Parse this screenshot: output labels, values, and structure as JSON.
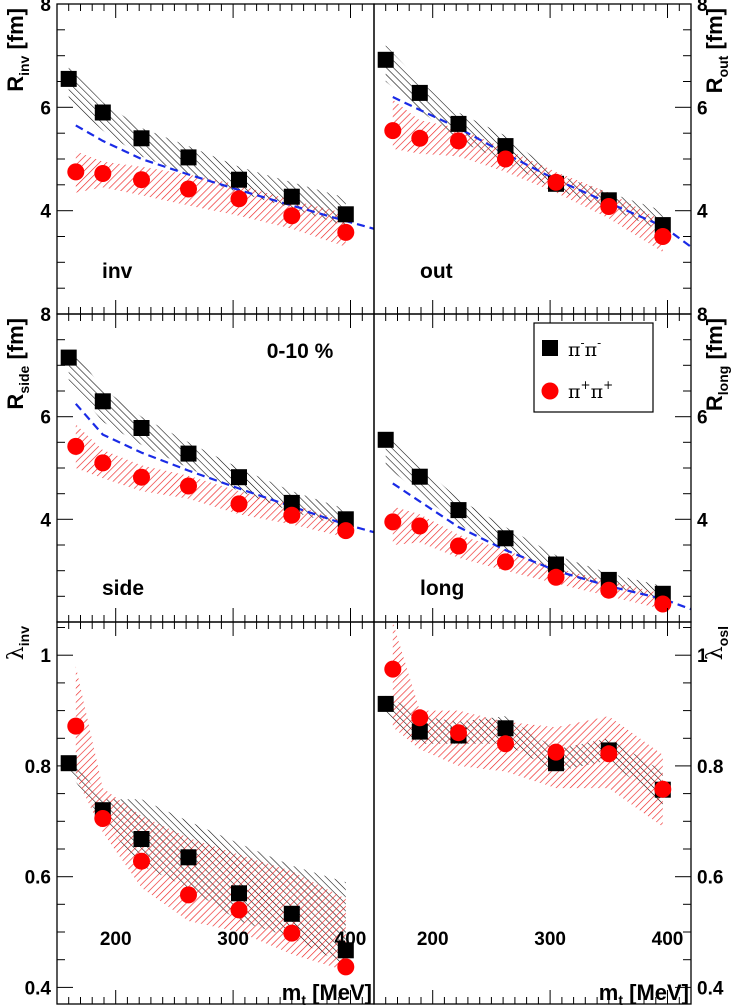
{
  "chart_data": {
    "type": "scatter",
    "centrality": "0-10 %",
    "x_axis": {
      "label": "m",
      "label_sub": "t",
      "label_unit": " [MeV]",
      "range": [
        150,
        420
      ],
      "ticks": [
        200,
        300,
        400
      ],
      "tick_labels": [
        "200",
        "300",
        "400"
      ]
    },
    "legend": {
      "position": "top-right of long panel",
      "entries": [
        {
          "series": "pim",
          "label": "π",
          "sup1": "-",
          "mid": "π",
          "sup2": "-"
        },
        {
          "series": "pip",
          "label": "π",
          "sup1": "+",
          "mid": "π",
          "sup2": "+"
        }
      ]
    },
    "colors": {
      "pim": "#000000",
      "pip": "#ff0000",
      "pip_fill": "#ee2222",
      "model": "#1a2be6"
    },
    "panels": [
      {
        "id": "inv",
        "label": "inv",
        "ylabel": "R",
        "ysub": "inv",
        "yunit": " [fm]",
        "ylabel_side": "left",
        "ylim": [
          2.0,
          8.0
        ],
        "yticks": [
          4,
          6,
          8
        ],
        "ytick_labels": [
          "4",
          "6",
          "8"
        ],
        "ytick_side": "left",
        "series": [
          {
            "name": "π-π-",
            "key": "pim",
            "marker": "square",
            "x": [
              160,
              189,
              222,
              262,
              305,
              350,
              396
            ],
            "y": [
              6.55,
              5.9,
              5.4,
              5.03,
              4.6,
              4.27,
              3.93
            ],
            "band_low": [
              6.15,
              5.55,
              5.05,
              4.7,
              4.35,
              4.05,
              3.7
            ],
            "band_high": [
              6.8,
              6.1,
              5.6,
              5.25,
              4.85,
              4.55,
              4.25
            ]
          },
          {
            "name": "π+π+",
            "key": "pip",
            "marker": "circle",
            "x": [
              166,
              189,
              222,
              262,
              305,
              350,
              396
            ],
            "y": [
              4.75,
              4.72,
              4.6,
              4.42,
              4.23,
              3.9,
              3.58
            ],
            "band_low": [
              4.35,
              4.45,
              4.3,
              4.1,
              3.9,
              3.65,
              3.3
            ],
            "band_high": [
              5.15,
              4.95,
              4.85,
              4.7,
              4.5,
              4.2,
              3.95
            ]
          }
        ],
        "model": {
          "x": [
            166,
            189,
            222,
            262,
            305,
            350,
            396,
            420
          ],
          "y": [
            5.65,
            5.35,
            5.0,
            4.7,
            4.4,
            4.1,
            3.8,
            3.65
          ]
        }
      },
      {
        "id": "out",
        "label": "out",
        "ylabel": "R",
        "ysub": "out",
        "yunit": " [fm]",
        "ylabel_side": "right",
        "ylim": [
          2.0,
          8.0
        ],
        "yticks": [
          4,
          6,
          8
        ],
        "ytick_labels": [
          "4",
          "6",
          "8"
        ],
        "ytick_side": "right",
        "series": [
          {
            "name": "π-π-",
            "key": "pim",
            "marker": "square",
            "x": [
              160,
              189,
              222,
              262,
              305,
              350,
              396
            ],
            "y": [
              6.92,
              6.28,
              5.68,
              5.25,
              4.52,
              4.2,
              3.72
            ],
            "band_low": [
              6.5,
              5.95,
              5.35,
              4.95,
              4.4,
              4.05,
              3.6
            ],
            "band_high": [
              7.2,
              6.5,
              5.9,
              5.45,
              4.7,
              4.35,
              4.0
            ]
          },
          {
            "name": "π+π+",
            "key": "pip",
            "marker": "circle",
            "x": [
              166,
              189,
              222,
              262,
              305,
              350,
              396
            ],
            "y": [
              5.55,
              5.4,
              5.35,
              5.0,
              4.55,
              4.08,
              3.5
            ],
            "band_low": [
              5.2,
              5.1,
              5.05,
              4.75,
              4.35,
              3.85,
              3.2
            ],
            "band_high": [
              6.15,
              5.75,
              5.6,
              5.2,
              4.75,
              4.35,
              3.8
            ]
          }
        ],
        "model": {
          "x": [
            166,
            189,
            222,
            262,
            305,
            350,
            396,
            420
          ],
          "y": [
            6.2,
            5.95,
            5.6,
            5.1,
            4.6,
            4.15,
            3.7,
            3.3
          ]
        }
      },
      {
        "id": "side",
        "label": "side",
        "ylabel": "R",
        "ysub": "side",
        "yunit": " [fm]",
        "ylabel_side": "left",
        "ylim": [
          2.0,
          8.0
        ],
        "yticks": [
          4,
          6,
          8
        ],
        "ytick_labels": [
          "4",
          "6",
          "8"
        ],
        "ytick_side": "left",
        "series": [
          {
            "name": "π-π-",
            "key": "pim",
            "marker": "square",
            "x": [
              160,
              189,
              222,
              262,
              305,
              350,
              396
            ],
            "y": [
              7.15,
              6.3,
              5.78,
              5.28,
              4.82,
              4.32,
              4.0
            ],
            "band_low": [
              6.7,
              5.9,
              5.45,
              5.0,
              4.55,
              4.15,
              3.85
            ],
            "band_high": [
              7.4,
              6.55,
              6.0,
              5.5,
              5.0,
              4.55,
              4.2
            ]
          },
          {
            "name": "π+π+",
            "key": "pip",
            "marker": "circle",
            "x": [
              166,
              189,
              222,
              262,
              305,
              350,
              396
            ],
            "y": [
              5.42,
              5.1,
              4.82,
              4.65,
              4.3,
              4.08,
              3.78
            ],
            "band_low": [
              5.0,
              4.8,
              4.55,
              4.4,
              4.1,
              3.9,
              3.65
            ],
            "band_high": [
              5.85,
              5.35,
              5.05,
              4.85,
              4.55,
              4.3,
              3.95
            ]
          }
        ],
        "model": {
          "x": [
            166,
            189,
            222,
            262,
            305,
            350,
            396,
            420
          ],
          "y": [
            6.25,
            5.65,
            5.3,
            4.95,
            4.6,
            4.25,
            3.9,
            3.75
          ]
        }
      },
      {
        "id": "long",
        "label": "long",
        "ylabel": "R",
        "ysub": "long",
        "yunit": " [fm]",
        "ylabel_side": "right",
        "ylim": [
          2.0,
          8.0
        ],
        "yticks": [
          4,
          6,
          8
        ],
        "ytick_labels": [
          "4",
          "6",
          "8"
        ],
        "ytick_side": "right",
        "series": [
          {
            "name": "π-π-",
            "key": "pim",
            "marker": "square",
            "x": [
              160,
              189,
              222,
              262,
              305,
              350,
              396
            ],
            "y": [
              5.55,
              4.83,
              4.18,
              3.63,
              3.12,
              2.82,
              2.55
            ],
            "band_low": [
              5.05,
              4.5,
              3.9,
              3.4,
              2.95,
              2.7,
              2.45
            ],
            "band_high": [
              5.75,
              5.05,
              4.4,
              3.85,
              3.3,
              2.95,
              2.7
            ]
          },
          {
            "name": "π+π+",
            "key": "pip",
            "marker": "circle",
            "x": [
              166,
              189,
              222,
              262,
              305,
              350,
              396
            ],
            "y": [
              3.95,
              3.87,
              3.48,
              3.17,
              2.87,
              2.62,
              2.35
            ],
            "band_low": [
              3.5,
              3.55,
              3.25,
              3.0,
              2.75,
              2.5,
              2.25
            ],
            "band_high": [
              4.25,
              4.1,
              3.7,
              3.4,
              3.05,
              2.8,
              2.55
            ]
          }
        ],
        "model": {
          "x": [
            166,
            189,
            222,
            262,
            305,
            350,
            396,
            420
          ],
          "y": [
            4.7,
            4.35,
            3.85,
            3.4,
            3.0,
            2.7,
            2.45,
            2.25
          ]
        }
      },
      {
        "id": "lambda_inv",
        "label": "",
        "ylabel": "λ",
        "ysub": "inv",
        "yunit": "",
        "ylabel_side": "left",
        "ylim": [
          0.37,
          1.06
        ],
        "yticks": [
          0.4,
          0.6,
          0.8,
          1.0
        ],
        "ytick_labels": [
          "0.4",
          "0.6",
          "0.8",
          "1"
        ],
        "ytick_side": "left",
        "series": [
          {
            "name": "π-π-",
            "key": "pim",
            "marker": "square",
            "x": [
              160,
              189,
              222,
              262,
              305,
              350,
              396
            ],
            "y": [
              0.805,
              0.72,
              0.668,
              0.635,
              0.57,
              0.533,
              0.467
            ],
            "band_low": [
              0.79,
              0.7,
              0.62,
              0.58,
              0.52,
              0.49,
              0.44
            ],
            "band_high": [
              0.82,
              0.74,
              0.74,
              0.7,
              0.66,
              0.62,
              0.59
            ]
          },
          {
            "name": "π+π+",
            "key": "pip",
            "marker": "circle",
            "x": [
              166,
              189,
              222,
              262,
              305,
              350,
              396
            ],
            "y": [
              0.872,
              0.705,
              0.628,
              0.567,
              0.54,
              0.498,
              0.437
            ],
            "band_low": [
              0.78,
              0.68,
              0.58,
              0.52,
              0.5,
              0.46,
              0.43
            ],
            "band_high": [
              0.98,
              0.76,
              0.71,
              0.67,
              0.64,
              0.61,
              0.56
            ]
          }
        ],
        "model": null
      },
      {
        "id": "lambda_osl",
        "label": "",
        "ylabel": "λ",
        "ysub": "osl",
        "yunit": "",
        "ylabel_side": "right",
        "ylim": [
          0.37,
          1.06
        ],
        "yticks": [
          0.4,
          0.6,
          0.8,
          1.0
        ],
        "ytick_labels": [
          "0.4",
          "0.6",
          "0.8",
          "1"
        ],
        "ytick_side": "right",
        "series": [
          {
            "name": "π-π-",
            "key": "pim",
            "marker": "square",
            "x": [
              160,
              189,
              222,
              262,
              305,
              350,
              396
            ],
            "y": [
              0.912,
              0.862,
              0.855,
              0.868,
              0.805,
              0.828,
              0.757
            ],
            "band_low": [
              0.89,
              0.84,
              0.84,
              0.84,
              0.79,
              0.81,
              0.73
            ],
            "band_high": [
              0.93,
              0.89,
              0.88,
              0.89,
              0.83,
              0.85,
              0.79
            ]
          },
          {
            "name": "π+π+",
            "key": "pip",
            "marker": "circle",
            "x": [
              166,
              189,
              222,
              262,
              305,
              350,
              396
            ],
            "y": [
              0.975,
              0.887,
              0.86,
              0.84,
              0.825,
              0.822,
              0.758
            ],
            "band_low": [
              0.87,
              0.83,
              0.8,
              0.79,
              0.76,
              0.76,
              0.69
            ],
            "band_high": [
              1.06,
              0.9,
              0.9,
              0.88,
              0.87,
              0.89,
              0.82
            ]
          }
        ],
        "model": null
      }
    ]
  }
}
